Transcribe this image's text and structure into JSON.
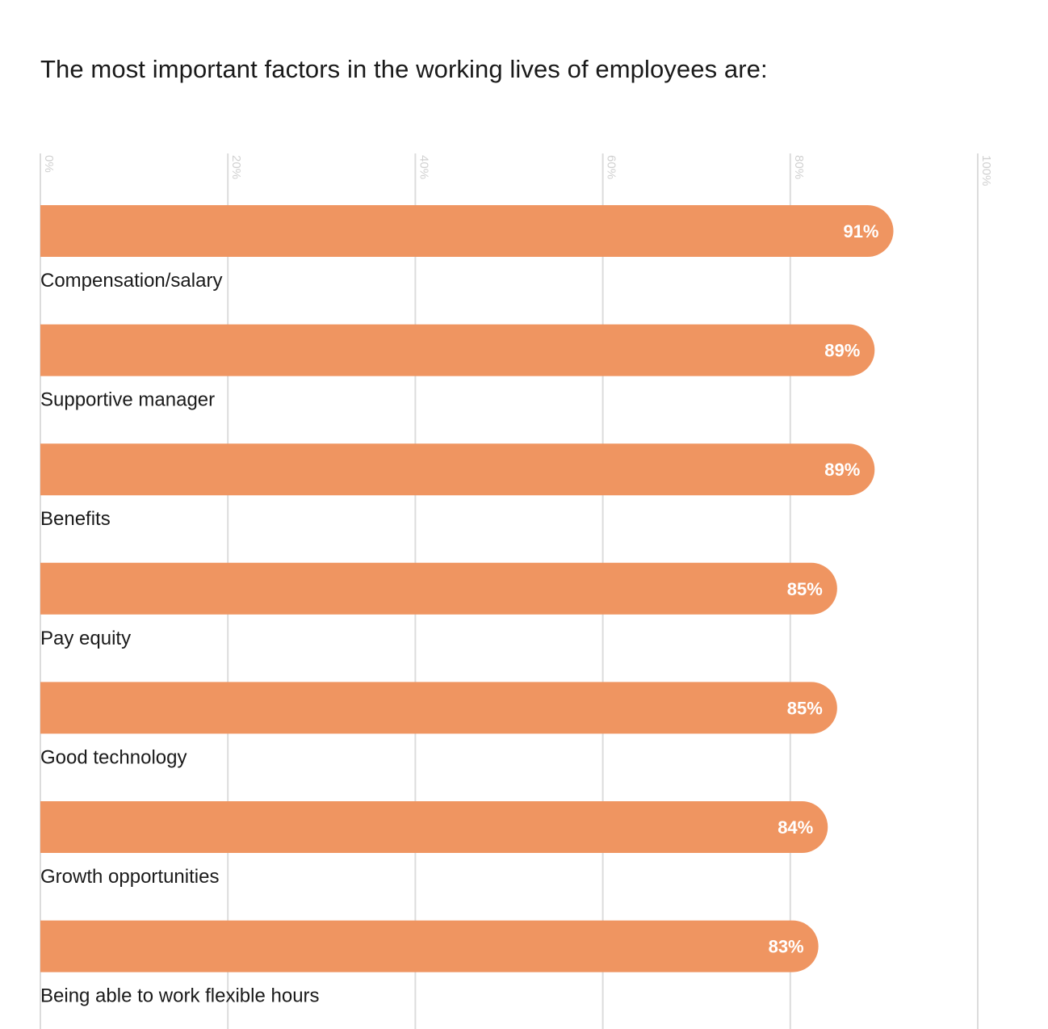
{
  "chart_data": {
    "type": "bar",
    "orientation": "horizontal",
    "title": "The most important factors in the working lives of employees are:",
    "categories": [
      "Compensation/salary",
      "Supportive manager",
      "Benefits",
      "Pay equity",
      "Good technology",
      "Growth opportunities",
      "Being able to work flexible hours"
    ],
    "values": [
      91,
      89,
      89,
      85,
      85,
      84,
      83
    ],
    "value_labels": [
      "91%",
      "89%",
      "89%",
      "85%",
      "85%",
      "84%",
      "83%"
    ],
    "x_ticks": [
      0,
      20,
      40,
      60,
      80,
      100
    ],
    "x_tick_labels": [
      "0%",
      "20%",
      "40%",
      "60%",
      "80%",
      "100%"
    ],
    "xlim": [
      0,
      100
    ],
    "xlabel": "",
    "ylabel": "",
    "grid": true,
    "legend": "none",
    "bar_color": "#EF9561",
    "grid_color": "#dcdcdc"
  }
}
